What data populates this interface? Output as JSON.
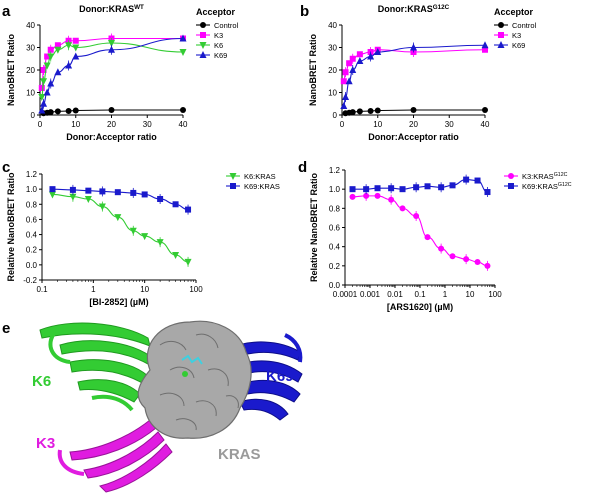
{
  "panel_labels": {
    "a": "a",
    "b": "b",
    "c": "c",
    "d": "d",
    "e": "e"
  },
  "structure_labels": {
    "k6": "K6",
    "k69": "K69",
    "k3": "K3",
    "kras": "KRAS"
  },
  "colors": {
    "control": "#000000",
    "K3": "#ff00ff",
    "K6": "#33cc33",
    "K69": "#1a1acc",
    "kras": "#9a9a9a"
  },
  "chart_data": [
    {
      "id": "a",
      "type": "scatter",
      "title_base": "Donor:KRAS",
      "title_sup": "WT",
      "xlabel": "Donor:Acceptor ratio",
      "ylabel": "NanoBRET Ratio",
      "legend_title": "Acceptor",
      "xlim": [
        0,
        40
      ],
      "ylim": [
        0,
        40
      ],
      "xticks": [
        "0",
        "10",
        "20",
        "30",
        "40"
      ],
      "yticks": [
        "0",
        "10",
        "20",
        "30",
        "40"
      ],
      "series": [
        {
          "name": "Control",
          "key": "control",
          "marker": "circle",
          "x": [
            1,
            2,
            3,
            5,
            8,
            10,
            20,
            40
          ],
          "y": [
            0.8,
            1.0,
            1.3,
            1.6,
            1.8,
            2.0,
            2.2,
            2.2
          ]
        },
        {
          "name": "K3",
          "key": "K3",
          "marker": "square",
          "x": [
            0.5,
            1,
            2,
            3,
            5,
            8,
            10,
            20,
            40
          ],
          "y": [
            12,
            20,
            26,
            29,
            31,
            33,
            33,
            34,
            34
          ]
        },
        {
          "name": "K6",
          "key": "K6",
          "marker": "triangle-down",
          "x": [
            0.5,
            1,
            2,
            3,
            5,
            8,
            10,
            20,
            40
          ],
          "y": [
            8,
            15,
            22,
            26,
            29,
            31,
            30,
            32,
            28
          ]
        },
        {
          "name": "K69",
          "key": "K69",
          "marker": "triangle-up",
          "x": [
            0.5,
            1,
            2,
            3,
            5,
            8,
            10,
            20,
            40
          ],
          "y": [
            2,
            5,
            10,
            14,
            19,
            22,
            26,
            29,
            34
          ]
        }
      ]
    },
    {
      "id": "b",
      "type": "scatter",
      "title_base": "Donor:KRAS",
      "title_sup": "G12C",
      "xlabel": "Donor:Acceptor ratio",
      "ylabel": "NanoBRET Ratio",
      "legend_title": "Acceptor",
      "xlim": [
        0,
        40
      ],
      "ylim": [
        0,
        40
      ],
      "xticks": [
        "0",
        "10",
        "20",
        "30",
        "40"
      ],
      "yticks": [
        "0",
        "10",
        "20",
        "30",
        "40"
      ],
      "series": [
        {
          "name": "Control",
          "key": "control",
          "marker": "circle",
          "x": [
            1,
            2,
            3,
            5,
            8,
            10,
            20,
            40
          ],
          "y": [
            0.8,
            1.0,
            1.3,
            1.6,
            1.8,
            2.0,
            2.2,
            2.2
          ]
        },
        {
          "name": "K3",
          "key": "K3",
          "marker": "square",
          "x": [
            0.5,
            1,
            2,
            3,
            5,
            8,
            10,
            20,
            40
          ],
          "y": [
            15,
            19,
            23,
            25,
            27,
            28,
            29,
            28,
            29
          ]
        },
        {
          "name": "K69",
          "key": "K69",
          "marker": "triangle-up",
          "x": [
            0.5,
            1,
            2,
            3,
            5,
            8,
            10,
            20,
            40
          ],
          "y": [
            4,
            8,
            15,
            20,
            24,
            26,
            28,
            30,
            31
          ]
        }
      ]
    },
    {
      "id": "c",
      "type": "scatter",
      "xlabel": "[BI-2852] (µM)",
      "ylabel": "Relative NanoBRET Ratio",
      "xscale": "log",
      "xlim": [
        0.1,
        100
      ],
      "ylim": [
        -0.2,
        1.2
      ],
      "xticks": [
        "0.1",
        "1",
        "10",
        "100"
      ],
      "yticks": [
        "-0.2",
        "0.0",
        "0.2",
        "0.4",
        "0.6",
        "0.8",
        "1.0",
        "1.2"
      ],
      "series": [
        {
          "name": "K6:KRAS",
          "key": "K6",
          "marker": "triangle-down",
          "x": [
            0.16,
            0.4,
            0.8,
            1.5,
            3,
            6,
            10,
            20,
            40,
            70
          ],
          "y": [
            0.93,
            0.9,
            0.87,
            0.77,
            0.63,
            0.45,
            0.38,
            0.3,
            0.13,
            0.04
          ]
        },
        {
          "name": "K69:KRAS",
          "key": "K69",
          "marker": "square",
          "x": [
            0.16,
            0.4,
            0.8,
            1.5,
            3,
            6,
            10,
            20,
            40,
            70
          ],
          "y": [
            1.0,
            0.99,
            0.98,
            0.97,
            0.96,
            0.95,
            0.93,
            0.87,
            0.8,
            0.73
          ]
        }
      ]
    },
    {
      "id": "d",
      "type": "scatter",
      "xlabel": "[ARS1620] (µM)",
      "ylabel": "Relative NanoBRET Ratio",
      "xscale": "log",
      "xlim": [
        0.0001,
        100
      ],
      "ylim": [
        0,
        1.2
      ],
      "xticks": [
        "0.0001",
        "0.001",
        "0.01",
        "0.1",
        "1",
        "10",
        "100"
      ],
      "yticks": [
        "0.0",
        "0.2",
        "0.4",
        "0.6",
        "0.8",
        "1.0",
        "1.2"
      ],
      "series": [
        {
          "name_base": "K3:KRAS",
          "name_sup": "G12C",
          "key": "K3",
          "marker": "circle",
          "x": [
            0.0002,
            0.0007,
            0.002,
            0.007,
            0.02,
            0.07,
            0.2,
            0.7,
            2,
            7,
            20,
            50
          ],
          "y": [
            0.92,
            0.93,
            0.93,
            0.89,
            0.8,
            0.72,
            0.5,
            0.38,
            0.3,
            0.27,
            0.24,
            0.2
          ]
        },
        {
          "name_base": "K69:KRAS",
          "name_sup": "G12C",
          "key": "K69",
          "marker": "square",
          "x": [
            0.0002,
            0.0007,
            0.002,
            0.007,
            0.02,
            0.07,
            0.2,
            0.7,
            2,
            7,
            20,
            50
          ],
          "y": [
            1.0,
            1.0,
            1.01,
            1.01,
            1.0,
            1.02,
            1.03,
            1.02,
            1.04,
            1.1,
            1.09,
            0.97
          ]
        }
      ]
    }
  ]
}
